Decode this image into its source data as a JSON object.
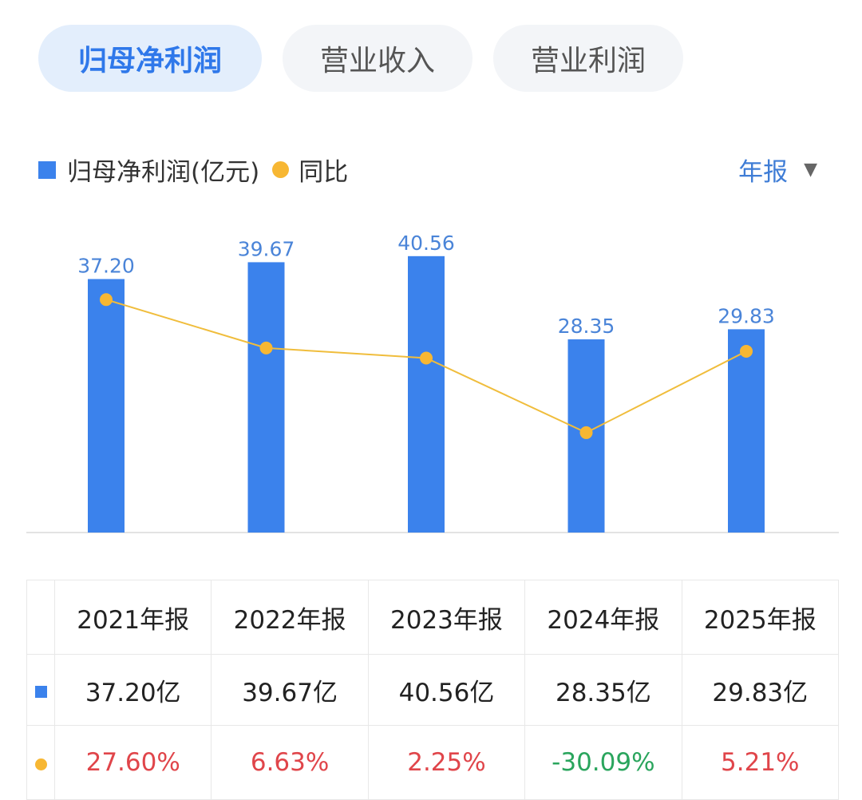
{
  "tabs": [
    {
      "label": "归母净利润",
      "active": true
    },
    {
      "label": "营业收入",
      "active": false
    },
    {
      "label": "营业利润",
      "active": false
    }
  ],
  "legend": {
    "bar": "归母净利润(亿元)",
    "line": "同比"
  },
  "period": {
    "label": "年报"
  },
  "colors": {
    "bar": "#3b82ec",
    "line": "#f0bd3c",
    "dot": "#f7b733",
    "positive": "#e0454a",
    "negative": "#2aa55d"
  },
  "chart_data": {
    "type": "bar",
    "title": "归母净利润",
    "categories": [
      "2021年报",
      "2022年报",
      "2023年报",
      "2024年报",
      "2025年报"
    ],
    "series": [
      {
        "name": "归母净利润(亿元)",
        "type": "bar",
        "values": [
          37.2,
          39.67,
          40.56,
          28.35,
          29.83
        ]
      },
      {
        "name": "同比",
        "type": "line",
        "values": [
          27.6,
          6.63,
          2.25,
          -30.09,
          5.21
        ]
      }
    ],
    "bar_labels": [
      "37.20",
      "39.67",
      "40.56",
      "28.35",
      "29.83"
    ],
    "ylim": [
      0,
      43
    ],
    "line_ylim": [
      -45,
      45
    ],
    "grid": false
  },
  "table": {
    "headers": [
      "2021年报",
      "2022年报",
      "2023年报",
      "2024年报",
      "2025年报"
    ],
    "values": [
      "37.20亿",
      "39.67亿",
      "40.56亿",
      "28.35亿",
      "29.83亿"
    ],
    "yoy": [
      "27.60%",
      "6.63%",
      "2.25%",
      "-30.09%",
      "5.21%"
    ]
  }
}
